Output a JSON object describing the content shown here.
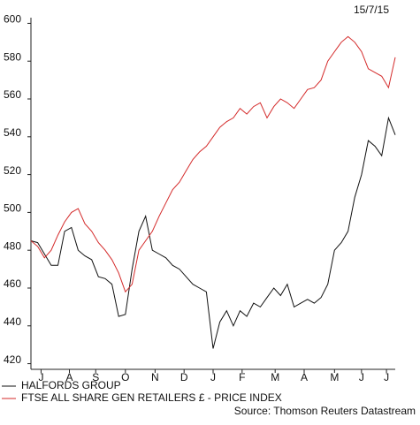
{
  "chart_data": {
    "type": "line",
    "date": "15/7/15",
    "source": "Source: Thomson Reuters Datastream",
    "x": [
      0,
      1,
      2,
      3,
      4,
      5,
      6,
      7,
      8,
      9,
      10,
      11,
      12,
      13,
      14,
      15,
      16,
      17,
      18,
      19,
      20,
      21,
      22,
      23,
      24,
      25,
      26,
      27,
      28,
      29,
      30,
      31,
      32,
      33,
      34,
      35,
      36,
      37,
      38,
      39,
      40,
      41,
      42,
      43,
      44,
      45,
      46,
      47,
      48,
      49,
      50,
      51,
      52,
      53,
      54
    ],
    "xlim": [
      0,
      54
    ],
    "xticks": [
      {
        "value": 1.5,
        "label": "J"
      },
      {
        "value": 5.7,
        "label": "A"
      },
      {
        "value": 9.6,
        "label": "S"
      },
      {
        "value": 14,
        "label": "O"
      },
      {
        "value": 18.4,
        "label": "N"
      },
      {
        "value": 22.7,
        "label": "D"
      },
      {
        "value": 27,
        "label": "J"
      },
      {
        "value": 31.3,
        "label": "F"
      },
      {
        "value": 36.2,
        "label": "M"
      },
      {
        "value": 40.5,
        "label": "A"
      },
      {
        "value": 45,
        "label": "M"
      },
      {
        "value": 49,
        "label": "J"
      },
      {
        "value": 52.7,
        "label": "J"
      }
    ],
    "ylim": [
      417,
      603
    ],
    "yticks": [
      420,
      440,
      460,
      480,
      500,
      520,
      540,
      560,
      580,
      600
    ],
    "series": [
      {
        "name": "HALFORDS GROUP",
        "color": "#111111",
        "values": [
          485,
          484,
          478,
          472,
          472,
          490,
          492,
          480,
          477,
          475,
          466,
          465,
          462,
          445,
          446,
          470,
          490,
          498,
          480,
          478,
          476,
          472,
          470,
          466,
          462,
          460,
          458,
          428,
          442,
          448,
          440,
          448,
          445,
          452,
          450,
          455,
          460,
          456,
          462,
          450,
          452,
          454,
          452,
          455,
          462,
          480,
          484,
          490,
          508,
          520,
          538,
          535,
          530,
          550,
          541
        ]
      },
      {
        "name": "FTSE ALL SHARE GEN RETAILERS £ - PRICE INDEX",
        "color": "#d42a2a",
        "values": [
          485,
          482,
          476,
          480,
          488,
          495,
          500,
          502,
          494,
          490,
          484,
          480,
          475,
          468,
          458,
          462,
          480,
          485,
          490,
          498,
          505,
          512,
          516,
          522,
          528,
          532,
          535,
          540,
          545,
          548,
          550,
          555,
          552,
          556,
          558,
          550,
          556,
          560,
          558,
          555,
          560,
          565,
          566,
          570,
          580,
          585,
          590,
          593,
          590,
          585,
          576,
          574,
          572,
          566,
          582
        ]
      }
    ]
  }
}
